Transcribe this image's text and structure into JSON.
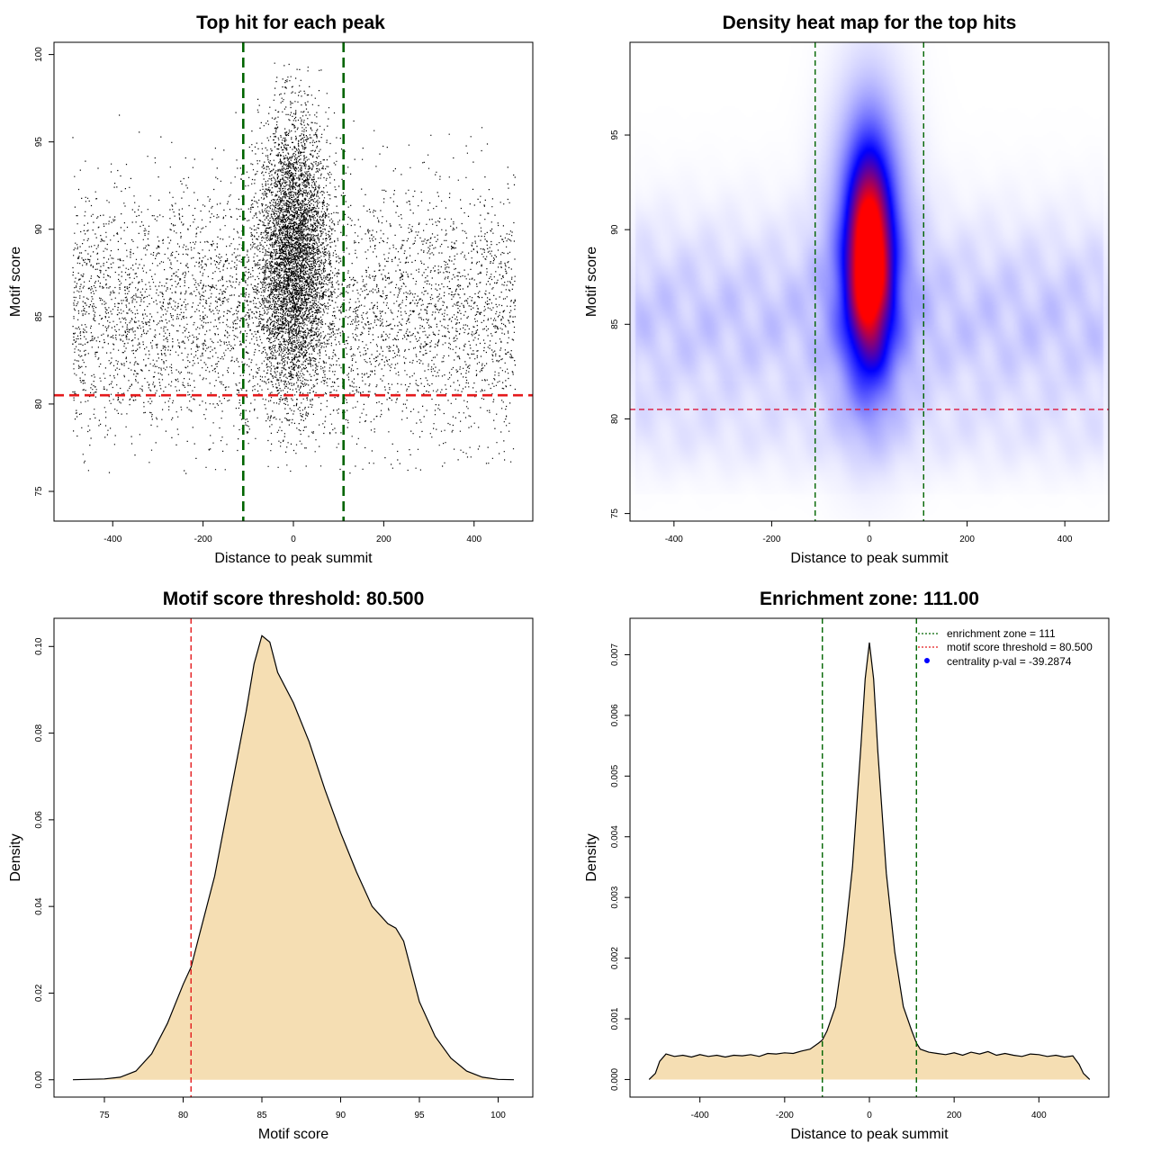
{
  "chart_data": [
    {
      "id": "scatter",
      "type": "scatter",
      "title": "Top hit for each peak",
      "xlabel": "Distance to peak summit",
      "ylabel": "Motif score",
      "xlim": [
        -530,
        530
      ],
      "ylim": [
        73.3,
        100.7
      ],
      "xticks": [
        -400,
        -200,
        0,
        200,
        400
      ],
      "yticks": [
        75,
        80,
        85,
        90,
        95,
        100
      ],
      "hlines": [
        {
          "y": 80.5,
          "color": "#e41a1c",
          "style": "dashed"
        }
      ],
      "vlines": [
        {
          "x": -111,
          "color": "#006400",
          "style": "dashed"
        },
        {
          "x": 111,
          "color": "#006400",
          "style": "dashed"
        }
      ],
      "point_color": "#000000",
      "point_distribution": {
        "background": {
          "n": 5200,
          "x_range": [
            -490,
            490
          ],
          "y_mean": 85.2,
          "y_sd": 3.7,
          "y_range": [
            76,
            96.7
          ]
        },
        "central": {
          "n": 9000,
          "x_mean": 0,
          "x_sd": 38,
          "y_mean": 88.5,
          "y_sd": 3.9,
          "y_range": [
            77.5,
            99.6
          ]
        }
      }
    },
    {
      "id": "heatmap",
      "type": "heatmap",
      "title": "Density heat map for the top hits",
      "xlabel": "Distance to peak summit",
      "ylabel": "Motif score",
      "xlim": [
        -490,
        490
      ],
      "ylim": [
        74.6,
        99.9
      ],
      "xticks": [
        -400,
        -200,
        0,
        200,
        400
      ],
      "yticks": [
        75,
        80,
        85,
        90,
        95
      ],
      "hlines": [
        {
          "y": 80.5,
          "color": "#dc143c",
          "style": "dashed"
        }
      ],
      "vlines": [
        {
          "x": -111,
          "color": "#006400",
          "style": "dashed"
        },
        {
          "x": 111,
          "color": "#006400",
          "style": "dashed"
        }
      ],
      "colorscale": [
        "#ffffff",
        "#0000ff",
        "#ff0000"
      ],
      "hotspot": {
        "x": 0,
        "y": 88.5,
        "x_sd": 30,
        "y_sd": 3.6
      }
    },
    {
      "id": "score-density",
      "type": "area",
      "title": "Motif score threshold: 80.500",
      "xlabel": "Motif score",
      "ylabel": "Density",
      "xlim": [
        71.8,
        102.2
      ],
      "ylim": [
        -0.004,
        0.1065
      ],
      "xticks": [
        75,
        80,
        85,
        90,
        95,
        100
      ],
      "yticks": [
        0.0,
        0.02,
        0.04,
        0.06,
        0.08,
        0.1
      ],
      "ytick_labels": [
        "0.00",
        "0.02",
        "0.04",
        "0.06",
        "0.08",
        "0.10"
      ],
      "fill": "#f5deb3",
      "vlines": [
        {
          "x": 80.5,
          "color": "#e41a1c",
          "style": "dashed"
        }
      ],
      "x": [
        73,
        75,
        76,
        77,
        78,
        79,
        80,
        80.5,
        81,
        82,
        83,
        84,
        84.5,
        85,
        85.5,
        86,
        87,
        88,
        89,
        90,
        91,
        92,
        93,
        93.5,
        94,
        95,
        96,
        97,
        98,
        99,
        100,
        101
      ],
      "y": [
        0.0,
        0.0002,
        0.0006,
        0.002,
        0.006,
        0.013,
        0.022,
        0.026,
        0.033,
        0.047,
        0.066,
        0.085,
        0.096,
        0.1025,
        0.101,
        0.094,
        0.087,
        0.078,
        0.067,
        0.057,
        0.048,
        0.04,
        0.036,
        0.035,
        0.032,
        0.018,
        0.01,
        0.005,
        0.002,
        0.0006,
        0.0001,
        0.0
      ]
    },
    {
      "id": "enrichment",
      "type": "area",
      "title": "Enrichment zone: 111.00",
      "xlabel": "Distance to peak summit",
      "ylabel": "Density",
      "xlim": [
        -565,
        565
      ],
      "ylim": [
        -0.00029,
        0.0076
      ],
      "xticks": [
        -400,
        -200,
        0,
        200,
        400
      ],
      "yticks": [
        0.0,
        0.001,
        0.002,
        0.003,
        0.004,
        0.005,
        0.006,
        0.007
      ],
      "ytick_labels": [
        "0.000",
        "0.001",
        "0.002",
        "0.003",
        "0.004",
        "0.005",
        "0.006",
        "0.007"
      ],
      "fill": "#f5deb3",
      "vlines": [
        {
          "x": -111,
          "color": "#006400",
          "style": "dashed"
        },
        {
          "x": 111,
          "color": "#006400",
          "style": "dashed"
        }
      ],
      "x": [
        -520,
        -505,
        -495,
        -480,
        -460,
        -440,
        -420,
        -400,
        -380,
        -360,
        -340,
        -320,
        -300,
        -280,
        -260,
        -240,
        -220,
        -200,
        -180,
        -160,
        -140,
        -120,
        -111,
        -100,
        -80,
        -60,
        -40,
        -20,
        -10,
        0,
        10,
        20,
        40,
        60,
        80,
        100,
        111,
        120,
        140,
        160,
        180,
        200,
        220,
        240,
        260,
        280,
        300,
        320,
        340,
        360,
        380,
        400,
        420,
        440,
        460,
        480,
        495,
        505,
        520
      ],
      "y": [
        0.0,
        0.0001,
        0.0003,
        0.00042,
        0.00038,
        0.0004,
        0.00037,
        0.00041,
        0.00038,
        0.0004,
        0.00037,
        0.0004,
        0.00039,
        0.00041,
        0.00038,
        0.00043,
        0.00042,
        0.00044,
        0.00043,
        0.00047,
        0.0005,
        0.0006,
        0.00065,
        0.0008,
        0.0012,
        0.0022,
        0.0035,
        0.0055,
        0.0066,
        0.0072,
        0.0066,
        0.0054,
        0.0034,
        0.0021,
        0.0012,
        0.0008,
        0.0006,
        0.0005,
        0.00045,
        0.00043,
        0.00041,
        0.00044,
        0.0004,
        0.00045,
        0.00042,
        0.00046,
        0.0004,
        0.00043,
        0.0004,
        0.00038,
        0.00042,
        0.00041,
        0.00038,
        0.0004,
        0.00037,
        0.00039,
        0.00025,
        0.0001,
        0.0
      ],
      "legend": {
        "position": "top-right",
        "entries": [
          {
            "label": "enrichment zone = 111",
            "color": "#006400",
            "symbol": "dotted-line"
          },
          {
            "label": "motif score threshold = 80.500",
            "color": "#e41a1c",
            "symbol": "dotted-line"
          },
          {
            "label": "centrality p-val = -39.2874",
            "color": "#0000ff",
            "symbol": "point"
          }
        ]
      }
    }
  ]
}
